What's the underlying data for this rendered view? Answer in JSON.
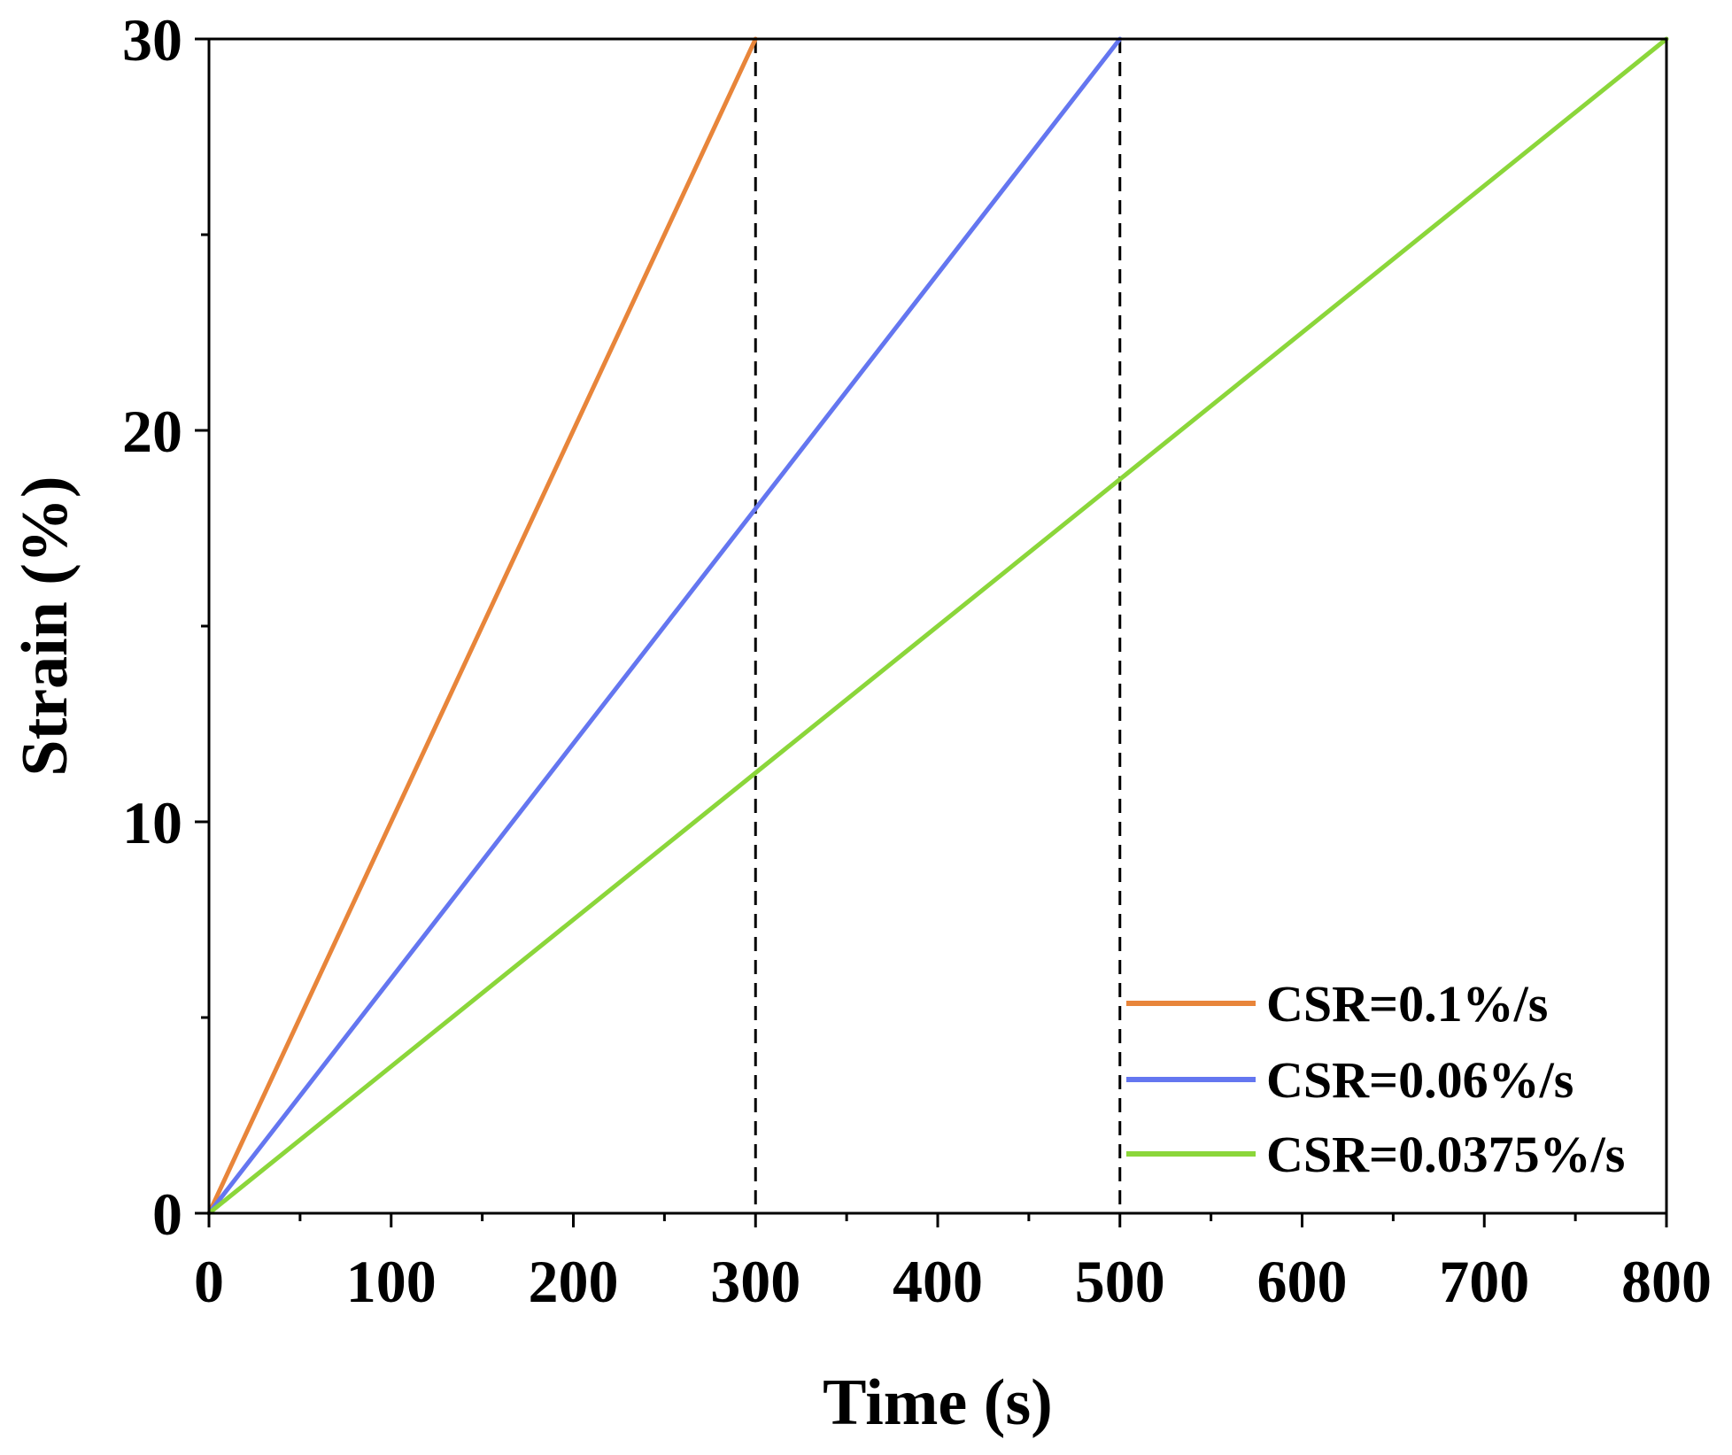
{
  "chart_data": {
    "type": "line",
    "title": "",
    "xlabel": "Time (s)",
    "ylabel": "Strain (%)",
    "xlim": [
      0,
      800
    ],
    "ylim": [
      0,
      30
    ],
    "xticks": [
      0,
      100,
      200,
      300,
      400,
      500,
      600,
      700,
      800
    ],
    "yticks": [
      0,
      10,
      20,
      30
    ],
    "xtick_labels": [
      "0",
      "100",
      "200",
      "300",
      "400",
      "500",
      "600",
      "700",
      "800"
    ],
    "ytick_labels": [
      "0",
      "10",
      "20",
      "30"
    ],
    "grid": false,
    "legend_position": "bottom-right",
    "series": [
      {
        "name": "CSR=0.1%/s",
        "color": "#E8853A",
        "x": [
          0,
          300
        ],
        "y": [
          0,
          30
        ]
      },
      {
        "name": "CSR=0.06%/s",
        "color": "#6476F0",
        "x": [
          0,
          500
        ],
        "y": [
          0,
          30
        ]
      },
      {
        "name": "CSR=0.0375%/s",
        "color": "#8BD63A",
        "x": [
          0,
          800
        ],
        "y": [
          0,
          30
        ]
      }
    ],
    "reference_lines": [
      {
        "orientation": "vertical",
        "x": 300,
        "style": "dashed",
        "color": "#000000"
      },
      {
        "orientation": "vertical",
        "x": 500,
        "style": "dashed",
        "color": "#000000"
      }
    ]
  }
}
